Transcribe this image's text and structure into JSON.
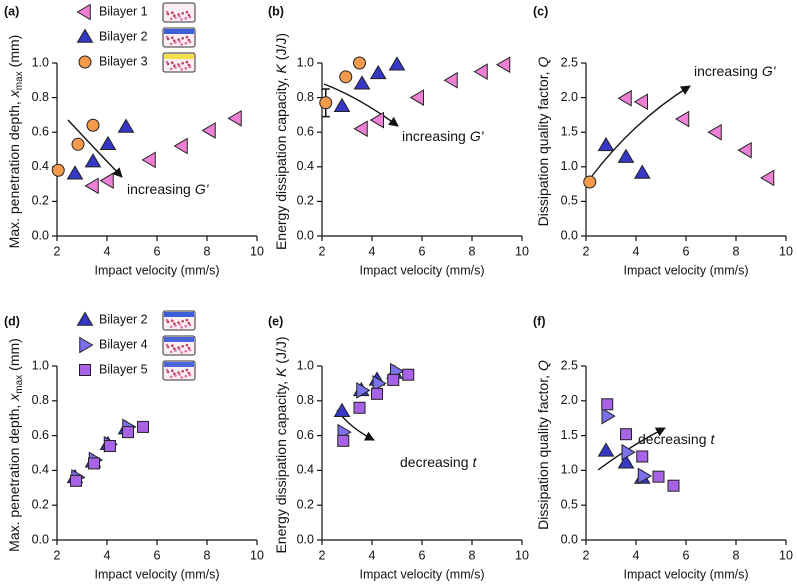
{
  "chart_data": [
    {
      "type": "scatter",
      "panel_label": "(a)",
      "xlabel": "Impact velocity (mm/s)",
      "ylabel": {
        "text": "Max. penetration depth,",
        "var": "x",
        "sub": "max",
        "unit": "(mm)"
      },
      "xlim": [
        2,
        10
      ],
      "xticks": [
        2,
        4,
        6,
        8,
        10
      ],
      "ylim": [
        0,
        1
      ],
      "yticks": [
        {
          "value": 0,
          "label": "0.0"
        },
        0.2,
        0.4,
        0.6,
        0.8,
        {
          "value": 1,
          "label": "1.0"
        }
      ],
      "legend": "upper left",
      "annotation": {
        "text": "increasing",
        "var": "G'"
      },
      "series": [
        {
          "name": "Bilayer 1",
          "color": "#ee80d6",
          "marker": "triangle-left",
          "x": [
            3.44,
            4.04,
            5.72,
            7.0,
            8.12,
            9.16
          ],
          "values": [
            0.29,
            0.32,
            0.44,
            0.52,
            0.61,
            0.68
          ]
        },
        {
          "name": "Bilayer 2",
          "color": "#3538c4",
          "marker": "triangle-up",
          "x": [
            2.72,
            3.44,
            4.04,
            4.76
          ],
          "values": [
            0.36,
            0.43,
            0.53,
            0.63
          ]
        },
        {
          "name": "Bilayer 3",
          "color": "#f39a4c",
          "marker": "circle",
          "x": [
            2.05,
            2.84,
            3.44
          ],
          "values": [
            0.38,
            0.53,
            0.64
          ]
        }
      ]
    },
    {
      "type": "scatter",
      "panel_label": "(b)",
      "xlabel": "Impact velocity (mm/s)",
      "ylabel": {
        "text": "Energy dissipation capacity,",
        "var": "K",
        "unit": "(J/J)"
      },
      "xlim": [
        2,
        10
      ],
      "xticks": [
        2,
        4,
        6,
        8,
        10
      ],
      "ylim": [
        0,
        1
      ],
      "yticks": [
        {
          "value": 0,
          "label": "0.0"
        },
        0.2,
        0.4,
        0.6,
        0.8,
        {
          "value": 1,
          "label": "1.0"
        }
      ],
      "annotation": {
        "text": "increasing",
        "var": "G'"
      },
      "series": [
        {
          "color": "#ee80d6",
          "marker": "triangle-left",
          "x": [
            3.6,
            4.25,
            5.85,
            7.2,
            8.4,
            9.3
          ],
          "values": [
            0.62,
            0.67,
            0.8,
            0.9,
            0.95,
            0.99
          ]
        },
        {
          "color": "#3538c4",
          "marker": "triangle-up",
          "x": [
            2.8,
            3.6,
            4.25,
            5.0
          ],
          "values": [
            0.75,
            0.88,
            0.94,
            0.99
          ]
        },
        {
          "color": "#f39a4c",
          "marker": "circle",
          "x": [
            2.15,
            2.95,
            3.5
          ],
          "values": [
            0.77,
            0.92,
            1.0
          ],
          "errors": [
            0.08,
            null,
            null
          ]
        }
      ]
    },
    {
      "type": "scatter",
      "panel_label": "(c)",
      "xlabel": "Impact velocity (mm/s)",
      "ylabel": {
        "text": "Dissipation quality factor,",
        "var": "Q"
      },
      "xlim": [
        2,
        10
      ],
      "xticks": [
        2,
        4,
        6,
        8,
        10
      ],
      "ylim": [
        0,
        2.5
      ],
      "yticks": [
        {
          "value": 0,
          "label": "0.0"
        },
        0.5,
        {
          "value": 1,
          "label": "1.0"
        },
        1.5,
        {
          "value": 2,
          "label": "2.0"
        },
        2.5
      ],
      "annotation": {
        "text": "increasing",
        "var": "G'"
      },
      "series": [
        {
          "color": "#ee80d6",
          "marker": "triangle-left",
          "x": [
            3.6,
            4.25,
            5.9,
            7.2,
            8.4,
            9.3
          ],
          "values": [
            1.99,
            1.94,
            1.69,
            1.5,
            1.24,
            0.84
          ]
        },
        {
          "color": "#3538c4",
          "marker": "triangle-up",
          "x": [
            2.8,
            3.6,
            4.25
          ],
          "values": [
            1.31,
            1.14,
            0.91
          ]
        },
        {
          "color": "#f39a4c",
          "marker": "circle",
          "x": [
            2.15
          ],
          "values": [
            0.78
          ]
        }
      ]
    },
    {
      "type": "scatter",
      "panel_label": "(d)",
      "xlabel": "Impact velocity (mm/s)",
      "ylabel": {
        "text": "Max. penetration depth,",
        "var": "x",
        "sub": "max",
        "unit": "(mm)"
      },
      "xlim": [
        2,
        10
      ],
      "xticks": [
        2,
        4,
        6,
        8,
        10
      ],
      "ylim": [
        0,
        1
      ],
      "yticks": [
        {
          "value": 0,
          "label": "0.0"
        },
        0.2,
        0.4,
        0.6,
        0.8,
        {
          "value": 1,
          "label": "1.0"
        }
      ],
      "legend": "upper left",
      "series": [
        {
          "name": "Bilayer 2",
          "color": "#3538c4",
          "marker": "triangle-up",
          "x": [
            2.72,
            3.44,
            4.04,
            4.76
          ],
          "values": [
            0.36,
            0.45,
            0.55,
            0.64
          ]
        },
        {
          "name": "Bilayer 4",
          "color": "#7a72ea",
          "marker": "triangle-right",
          "x": [
            2.8,
            3.5,
            4.1,
            4.84
          ],
          "values": [
            0.36,
            0.46,
            0.55,
            0.65
          ]
        },
        {
          "name": "Bilayer 5",
          "color": "#a862e6",
          "marker": "square",
          "x": [
            2.76,
            3.48,
            4.12,
            4.84,
            5.44
          ],
          "values": [
            0.34,
            0.44,
            0.54,
            0.62,
            0.65
          ]
        }
      ]
    },
    {
      "type": "scatter",
      "panel_label": "(e)",
      "xlabel": "Impact velocity (mm/s)",
      "ylabel": {
        "text": "Energy dissipation capacity,",
        "var": "K",
        "unit": "(J/J)"
      },
      "xlim": [
        2,
        10
      ],
      "xticks": [
        2,
        4,
        6,
        8,
        10
      ],
      "ylim": [
        0,
        1
      ],
      "yticks": [
        {
          "value": 0,
          "label": "0.0"
        },
        0.2,
        0.4,
        0.6,
        0.8,
        {
          "value": 1,
          "label": "1.0"
        }
      ],
      "annotation": {
        "text": "decreasing",
        "var": "t"
      },
      "series": [
        {
          "color": "#3538c4",
          "marker": "triangle-up",
          "x": [
            2.8,
            3.57,
            4.2,
            4.9
          ],
          "values": [
            0.74,
            0.86,
            0.92,
            0.96
          ]
        },
        {
          "color": "#7a72ea",
          "marker": "triangle-right",
          "x": [
            2.85,
            3.6,
            4.25,
            4.95
          ],
          "values": [
            0.62,
            0.86,
            0.9,
            0.97
          ]
        },
        {
          "color": "#a862e6",
          "marker": "square",
          "x": [
            2.85,
            3.5,
            4.2,
            4.85,
            5.45
          ],
          "values": [
            0.57,
            0.76,
            0.84,
            0.92,
            0.95
          ]
        }
      ]
    },
    {
      "type": "scatter",
      "panel_label": "(f)",
      "xlabel": "Impact velocity (mm/s)",
      "ylabel": {
        "text": "Dissipation quality factor,",
        "var": "Q"
      },
      "xlim": [
        2,
        10
      ],
      "xticks": [
        2,
        4,
        6,
        8,
        10
      ],
      "ylim": [
        0,
        2.5
      ],
      "yticks": [
        {
          "value": 0,
          "label": "0.0"
        },
        0.5,
        {
          "value": 1,
          "label": "1.0"
        },
        1.5,
        {
          "value": 2,
          "label": "2.0"
        },
        2.5
      ],
      "annotation": {
        "text": "decreasing",
        "var": "t"
      },
      "series": [
        {
          "color": "#3538c4",
          "marker": "triangle-up",
          "x": [
            2.8,
            3.6,
            4.25
          ],
          "values": [
            1.28,
            1.11,
            0.89
          ]
        },
        {
          "color": "#7a72ea",
          "marker": "triangle-right",
          "x": [
            2.85,
            3.65,
            4.3
          ],
          "values": [
            1.78,
            1.26,
            0.92
          ]
        },
        {
          "color": "#a862e6",
          "marker": "square",
          "x": [
            2.85,
            3.6,
            4.25,
            4.9,
            5.5
          ],
          "values": [
            1.95,
            1.52,
            1.2,
            0.91,
            0.78
          ]
        }
      ]
    }
  ]
}
